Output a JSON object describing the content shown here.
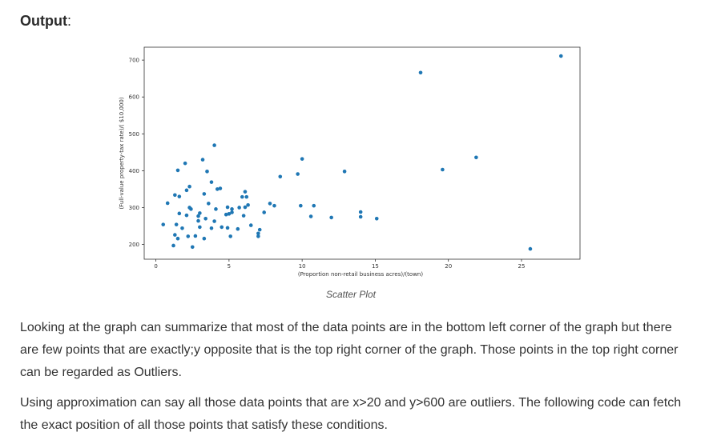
{
  "heading": {
    "label": "Output",
    "suffix": ":"
  },
  "caption": "Scatter Plot",
  "paragraphs": [
    "Looking at the graph can summarize that most of the data points are in the bottom left corner of the graph but there are few points that are exactly;y opposite that is the top right corner of the graph. Those points in the top right corner can be regarded as Outliers.",
    "Using approximation can say all those data points that are x>20 and y>600 are outliers. The following code can fetch the exact position of all those points that satisfy these conditions."
  ],
  "chart_data": {
    "type": "scatter",
    "xlabel": "(Proportion non-retail business acres)/(town)",
    "ylabel": "(Full-value property-tax rate)/( $10,000)",
    "xlim": [
      -0.8,
      29
    ],
    "ylim": [
      160,
      735
    ],
    "xticks": [
      0,
      5,
      10,
      15,
      20,
      25
    ],
    "yticks": [
      200,
      300,
      400,
      500,
      600,
      700
    ],
    "point_color": "#1f77b4",
    "grid": false,
    "points": [
      [
        0.5,
        254
      ],
      [
        0.8,
        312
      ],
      [
        1.2,
        197
      ],
      [
        1.3,
        226
      ],
      [
        1.3,
        334
      ],
      [
        1.4,
        254
      ],
      [
        1.5,
        216
      ],
      [
        1.5,
        401
      ],
      [
        1.6,
        330
      ],
      [
        1.6,
        284
      ],
      [
        1.8,
        244
      ],
      [
        2.0,
        420
      ],
      [
        2.1,
        347
      ],
      [
        2.1,
        279
      ],
      [
        2.2,
        222
      ],
      [
        2.3,
        357
      ],
      [
        2.3,
        300
      ],
      [
        2.4,
        296
      ],
      [
        2.5,
        193
      ],
      [
        2.7,
        223
      ],
      [
        2.9,
        264
      ],
      [
        2.9,
        277
      ],
      [
        3.0,
        285
      ],
      [
        3.0,
        247
      ],
      [
        3.2,
        430
      ],
      [
        3.3,
        216
      ],
      [
        3.3,
        337
      ],
      [
        3.4,
        270
      ],
      [
        3.5,
        398
      ],
      [
        3.6,
        311
      ],
      [
        3.8,
        369
      ],
      [
        3.8,
        244
      ],
      [
        4.0,
        263
      ],
      [
        4.0,
        469
      ],
      [
        4.1,
        296
      ],
      [
        4.2,
        350
      ],
      [
        4.4,
        352
      ],
      [
        4.5,
        247
      ],
      [
        4.8,
        281
      ],
      [
        4.9,
        245
      ],
      [
        4.9,
        301
      ],
      [
        5.0,
        283
      ],
      [
        5.1,
        222
      ],
      [
        5.2,
        296
      ],
      [
        5.2,
        287
      ],
      [
        5.6,
        242
      ],
      [
        5.7,
        300
      ],
      [
        5.9,
        329
      ],
      [
        6.0,
        278
      ],
      [
        6.1,
        343
      ],
      [
        6.1,
        301
      ],
      [
        6.2,
        329
      ],
      [
        6.3,
        307
      ],
      [
        6.5,
        252
      ],
      [
        7.0,
        230
      ],
      [
        7.0,
        222
      ],
      [
        7.1,
        240
      ],
      [
        7.4,
        287
      ],
      [
        7.8,
        311
      ],
      [
        8.1,
        305
      ],
      [
        8.5,
        384
      ],
      [
        9.7,
        391
      ],
      [
        9.9,
        305
      ],
      [
        10.0,
        432
      ],
      [
        10.6,
        276
      ],
      [
        10.8,
        305
      ],
      [
        12.0,
        273
      ],
      [
        12.9,
        398
      ],
      [
        14.0,
        288
      ],
      [
        14.0,
        275
      ],
      [
        15.1,
        270
      ],
      [
        18.1,
        666
      ],
      [
        19.6,
        403
      ],
      [
        21.9,
        436
      ],
      [
        25.6,
        188
      ],
      [
        27.7,
        711
      ]
    ]
  }
}
